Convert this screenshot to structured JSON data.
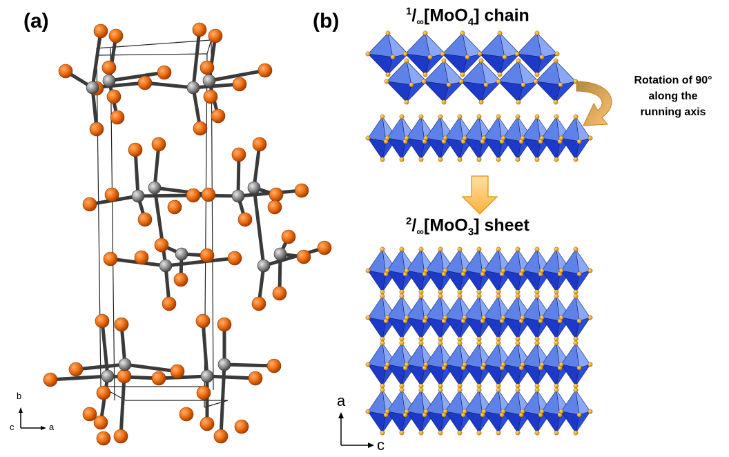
{
  "panels": {
    "a": {
      "label": "(a)",
      "axes": {
        "b": "b",
        "c": "c",
        "a": "a"
      }
    },
    "b": {
      "label": "(b)",
      "chain_title": {
        "sup": "1",
        "mid": "/",
        "sub_inf": "∞",
        "main": "[MoO",
        "sub4": "4",
        "tail": "] chain"
      },
      "sheet_title": {
        "sup": "2",
        "mid": "/",
        "sub_inf": "∞",
        "main": "[MoO",
        "sub3": "3",
        "tail": "] sheet"
      },
      "rotation_note": [
        "Rotation of 90°",
        "along the",
        "running axis"
      ],
      "axes": {
        "a": "a",
        "c": "c"
      }
    }
  },
  "colors": {
    "oxygen": "#f07010",
    "molybdenum": "#8c8c8c",
    "polyhedron_dark": "#1c39c8",
    "polyhedron_light": "#5f82e8",
    "arrow": "#ffc86a"
  }
}
